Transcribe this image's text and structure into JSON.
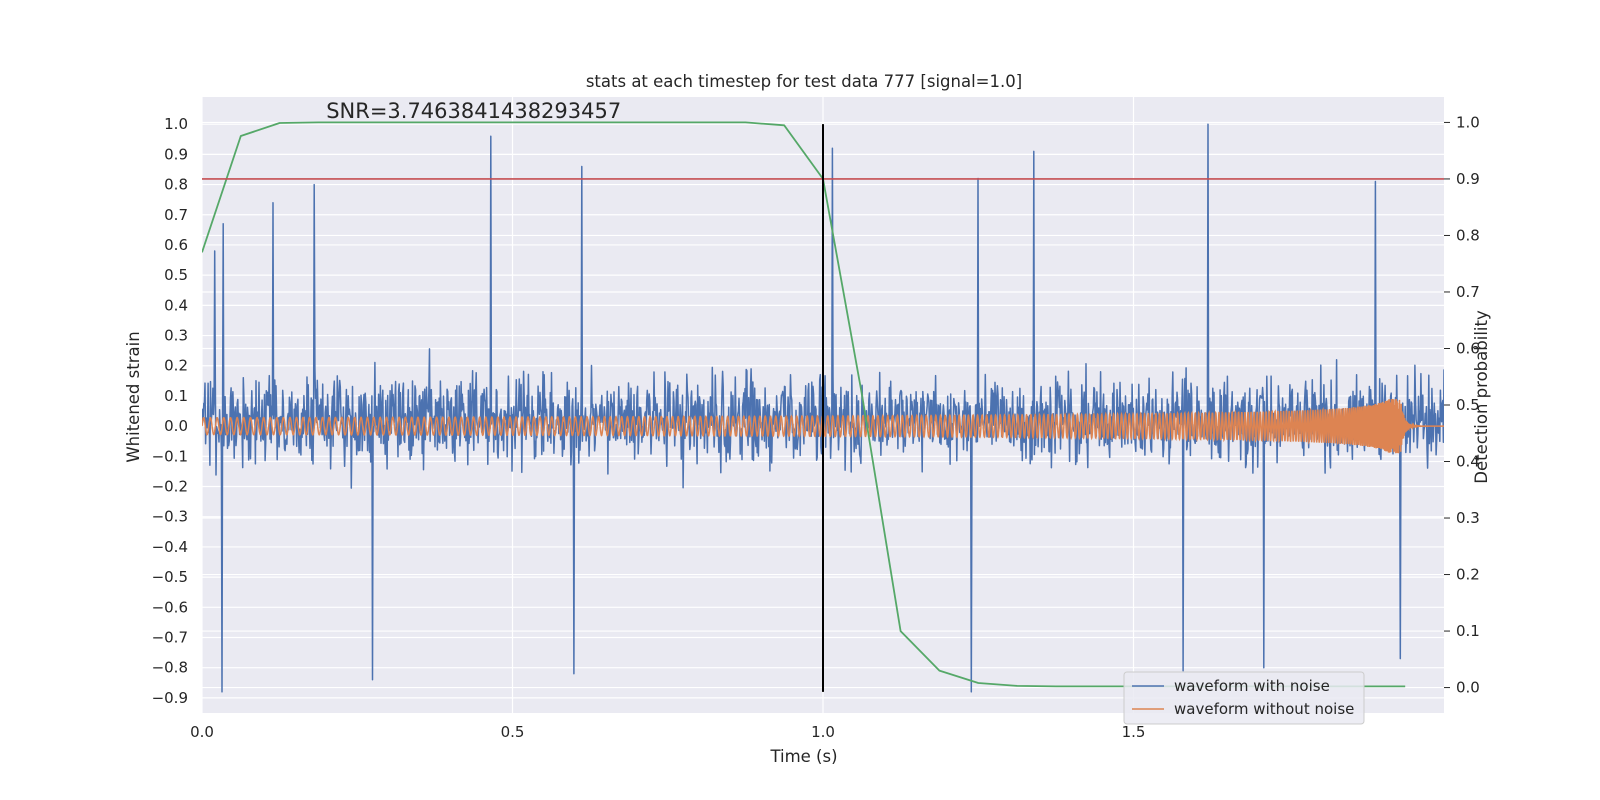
{
  "chart_data": {
    "type": "line",
    "title": "stats at each timestep for test data 777 [signal=1.0]",
    "xlabel": "Time (s)",
    "ylabel": "Whitened strain",
    "ylabel_right": "Detection probability",
    "xlim": [
      0.0,
      2.0
    ],
    "ylim": [
      -0.95,
      1.09
    ],
    "ylim_right": [
      -0.045,
      1.045
    ],
    "x_ticks": [
      "0.0",
      "0.5",
      "1.0",
      "1.5"
    ],
    "x_tick_values": [
      0.0,
      0.5,
      1.0,
      1.5
    ],
    "y_ticks": [
      "1.0",
      "0.9",
      "0.8",
      "0.7",
      "0.6",
      "0.5",
      "0.4",
      "0.3",
      "0.2",
      "0.1",
      "0.0",
      "−0.1",
      "−0.2",
      "−0.3",
      "−0.4",
      "−0.5",
      "−0.6",
      "−0.7",
      "−0.8",
      "−0.9"
    ],
    "y_tick_values": [
      1.0,
      0.9,
      0.8,
      0.7,
      0.6,
      0.5,
      0.4,
      0.3,
      0.2,
      0.1,
      0.0,
      -0.1,
      -0.2,
      -0.3,
      -0.4,
      -0.5,
      -0.6,
      -0.7,
      -0.8,
      -0.9
    ],
    "y_right_ticks": [
      "1.0",
      "0.9",
      "0.8",
      "0.7",
      "0.6",
      "0.5",
      "0.4",
      "0.3",
      "0.2",
      "0.1",
      "0.0"
    ],
    "y_right_tick_values": [
      1.0,
      0.9,
      0.8,
      0.7,
      0.6,
      0.5,
      0.4,
      0.3,
      0.2,
      0.1,
      0.0
    ],
    "annotation": "SNR=3.7463841438293457",
    "annotation_at": [
      0.2,
      1.02
    ],
    "threshold": {
      "value": 0.9,
      "axis": "right",
      "color": "#c44e52"
    },
    "marker_line": {
      "x": 1.0,
      "y_range": [
        -0.88,
        1.0
      ],
      "color": "#000000"
    },
    "series": [
      {
        "name": "waveform with noise",
        "color": "#4c72b0",
        "kind": "noise",
        "axis": "left",
        "sample_count": 2048,
        "amplitude_range": [
          -0.88,
          1.0
        ],
        "peaks": [
          {
            "t": 0.021,
            "v": 0.58
          },
          {
            "t": 0.032,
            "v": -0.88
          },
          {
            "t": 0.034,
            "v": 0.67
          },
          {
            "t": 0.114,
            "v": 0.74
          },
          {
            "t": 0.181,
            "v": 0.8
          },
          {
            "t": 0.275,
            "v": -0.84
          },
          {
            "t": 0.465,
            "v": 0.96
          },
          {
            "t": 0.612,
            "v": 0.86
          },
          {
            "t": 0.599,
            "v": -0.82
          },
          {
            "t": 1.015,
            "v": 0.92
          },
          {
            "t": 1.25,
            "v": 0.82
          },
          {
            "t": 1.239,
            "v": -0.88
          },
          {
            "t": 1.34,
            "v": 0.91
          },
          {
            "t": 1.58,
            "v": -0.81
          },
          {
            "t": 1.62,
            "v": 1.0
          },
          {
            "t": 1.71,
            "v": -0.8
          },
          {
            "t": 1.89,
            "v": 0.81
          },
          {
            "t": 1.93,
            "v": -0.77
          }
        ]
      },
      {
        "name": "waveform without noise",
        "color": "#dd8452",
        "kind": "chirp",
        "axis": "left",
        "merger_time": 1.93,
        "base_amplitude": 0.028,
        "peak_amplitude": 0.09
      },
      {
        "name": "Detection probability",
        "color": "#55a868",
        "kind": "line",
        "axis": "right",
        "x": [
          0.0,
          0.0625,
          0.125,
          0.1875,
          0.25,
          0.3125,
          0.375,
          0.4375,
          0.5,
          0.5625,
          0.625,
          0.6875,
          0.75,
          0.8125,
          0.875,
          0.9375,
          1.0,
          1.0625,
          1.125,
          1.1875,
          1.25,
          1.3125,
          1.375,
          1.4375,
          1.5,
          1.5625,
          1.625,
          1.6875,
          1.75,
          1.8125,
          1.875,
          1.9375
        ],
        "y": [
          0.77,
          0.976,
          0.999,
          1.0,
          1.0,
          1.0,
          1.0,
          1.0,
          1.0,
          1.0,
          1.0,
          1.0,
          1.0,
          1.0,
          1.0,
          0.995,
          0.9,
          0.52,
          0.1,
          0.03,
          0.008,
          0.003,
          0.002,
          0.002,
          0.002,
          0.002,
          0.002,
          0.002,
          0.002,
          0.002,
          0.002,
          0.002
        ]
      }
    ],
    "legend": {
      "placement": "lower-right",
      "entries": [
        "waveform with noise",
        "waveform without noise"
      ]
    },
    "colors": {
      "plot_bg": "#eaeaf2",
      "grid": "#ffffff",
      "text": "#262626"
    }
  }
}
